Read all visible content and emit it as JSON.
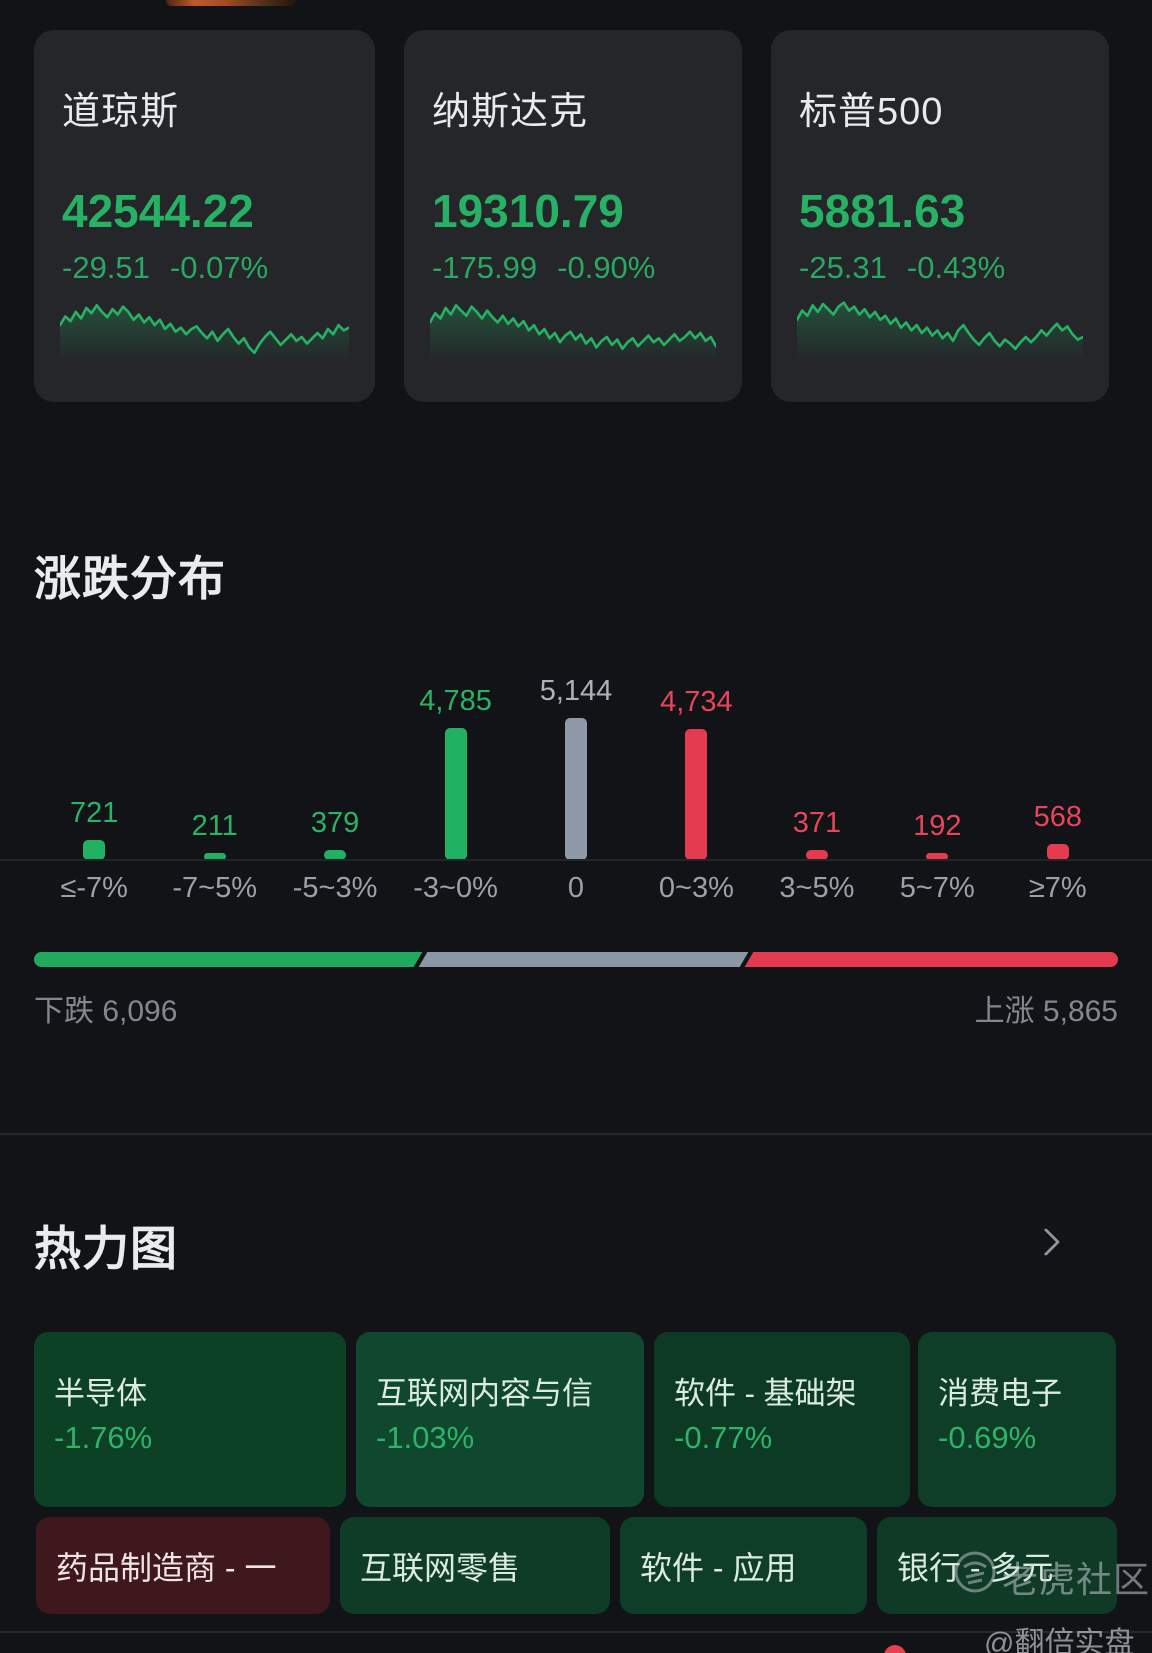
{
  "colors": {
    "background": "#121316",
    "card_background": "#242629",
    "text_primary": "#e8eaed",
    "green": "#27b164",
    "green_bar": "#21b163",
    "red_bar": "#e53b51",
    "flat_gray": "#8e9aa8",
    "axis_label_gray": "#9aa1ab",
    "heat_tile_greens": [
      "#0d4126",
      "#0f482e",
      "#0d3a25",
      "#0e3e28"
    ],
    "heat_tile_red": "#3e181c"
  },
  "indices": [
    {
      "name": "道琼斯",
      "value": "42544.22",
      "change": "-29.51",
      "change_pct": "-0.07%"
    },
    {
      "name": "纳斯达克",
      "value": "19310.79",
      "change": "-175.99",
      "change_pct": "-0.90%"
    },
    {
      "name": "标普500",
      "value": "5881.63",
      "change": "-25.31",
      "change_pct": "-0.43%"
    }
  ],
  "distribution": {
    "title": "涨跌分布",
    "down_label": "下跌",
    "down_value": "6,096",
    "up_label": "上涨",
    "up_value": "5,865"
  },
  "heatmap": {
    "title": "热力图",
    "rows": [
      [
        {
          "label": "半导体",
          "pct": "-1.76%",
          "bg": "#0d4126",
          "direction": "down"
        },
        {
          "label": "互联网内容与信",
          "pct": "-1.03%",
          "bg": "#0f482e",
          "direction": "down"
        },
        {
          "label": "软件 - 基础架",
          "pct": "-0.77%",
          "bg": "#0d3a25",
          "direction": "down"
        },
        {
          "label": "消费电子",
          "pct": "-0.69%",
          "bg": "#0e3e28",
          "direction": "down"
        }
      ],
      [
        {
          "label": "药品制造商 - 一",
          "pct": "",
          "bg": "#3e181c",
          "direction": "up"
        },
        {
          "label": "互联网零售",
          "pct": "",
          "bg": "#0e3c27",
          "direction": "down"
        },
        {
          "label": "软件 - 应用",
          "pct": "",
          "bg": "#0f3e28",
          "direction": "down"
        },
        {
          "label": "银行 - 多元",
          "pct": "",
          "bg": "#0e3a26",
          "direction": "down"
        }
      ]
    ]
  },
  "watermark": {
    "community": "老虎社区",
    "handle": "@翻倍实盘"
  },
  "chart_data": [
    {
      "type": "line",
      "name": "dow-sparkline",
      "trend": "down",
      "color": "#27b164",
      "points": [
        0.38,
        0.25,
        0.32,
        0.18,
        0.28,
        0.12,
        0.2,
        0.08,
        0.18,
        0.26,
        0.14,
        0.22,
        0.1,
        0.18,
        0.3,
        0.22,
        0.34,
        0.26,
        0.38,
        0.3,
        0.44,
        0.36,
        0.48,
        0.42,
        0.52,
        0.44,
        0.4,
        0.5,
        0.58,
        0.48,
        0.62,
        0.52,
        0.44,
        0.56,
        0.66,
        0.58,
        0.72,
        0.8,
        0.66,
        0.56,
        0.48,
        0.58,
        0.68,
        0.6,
        0.52,
        0.62,
        0.56,
        0.66,
        0.58,
        0.5,
        0.58,
        0.44,
        0.52,
        0.38,
        0.46,
        0.42
      ]
    },
    {
      "type": "line",
      "name": "nasdaq-sparkline",
      "trend": "down",
      "color": "#27b164",
      "points": [
        0.34,
        0.2,
        0.28,
        0.12,
        0.22,
        0.08,
        0.16,
        0.24,
        0.1,
        0.18,
        0.28,
        0.16,
        0.26,
        0.34,
        0.24,
        0.36,
        0.28,
        0.4,
        0.32,
        0.46,
        0.38,
        0.52,
        0.44,
        0.58,
        0.5,
        0.64,
        0.54,
        0.48,
        0.6,
        0.52,
        0.66,
        0.58,
        0.72,
        0.62,
        0.56,
        0.68,
        0.6,
        0.74,
        0.64,
        0.58,
        0.7,
        0.62,
        0.54,
        0.64,
        0.58,
        0.68,
        0.6,
        0.52,
        0.62,
        0.56,
        0.48,
        0.58,
        0.5,
        0.62,
        0.56,
        0.7
      ]
    },
    {
      "type": "line",
      "name": "sp500-sparkline",
      "trend": "down",
      "color": "#27b164",
      "points": [
        0.3,
        0.16,
        0.24,
        0.08,
        0.18,
        0.06,
        0.14,
        0.22,
        0.1,
        0.04,
        0.16,
        0.1,
        0.22,
        0.14,
        0.26,
        0.18,
        0.3,
        0.24,
        0.36,
        0.28,
        0.42,
        0.34,
        0.46,
        0.38,
        0.5,
        0.42,
        0.54,
        0.46,
        0.58,
        0.5,
        0.62,
        0.46,
        0.38,
        0.5,
        0.6,
        0.68,
        0.58,
        0.5,
        0.62,
        0.7,
        0.6,
        0.66,
        0.74,
        0.64,
        0.56,
        0.64,
        0.56,
        0.46,
        0.54,
        0.44,
        0.36,
        0.46,
        0.4,
        0.52,
        0.6,
        0.56
      ]
    },
    {
      "type": "bar",
      "name": "change-distribution",
      "title": "涨跌分布",
      "categories": [
        "≤-7%",
        "-7~5%",
        "-5~3%",
        "-3~0%",
        "0",
        "0~3%",
        "3~5%",
        "5~7%",
        "≥7%"
      ],
      "values": [
        721,
        211,
        379,
        4785,
        5144,
        4734,
        371,
        192,
        568
      ],
      "display_values": [
        "721",
        "211",
        "379",
        "4,785",
        "5,144",
        "4,734",
        "371",
        "192",
        "568"
      ],
      "groups": [
        "down",
        "down",
        "down",
        "down",
        "flat",
        "up",
        "up",
        "up",
        "up"
      ],
      "ylim": [
        0,
        5144
      ],
      "grid": false,
      "legend": false
    },
    {
      "type": "stacked-bar",
      "name": "advance-decline-ratio",
      "segments": [
        {
          "name": "down",
          "value": 6096
        },
        {
          "name": "flat",
          "value": 5144
        },
        {
          "name": "up",
          "value": 5865
        }
      ]
    }
  ]
}
